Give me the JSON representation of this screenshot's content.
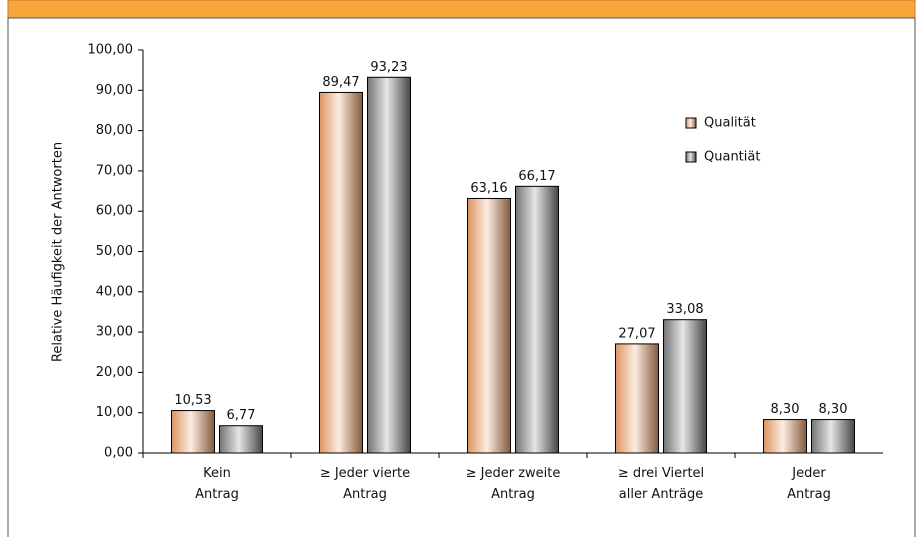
{
  "chart_data": {
    "type": "bar",
    "y_label": "Relative Häufigkeit der Antworten",
    "categories": [
      "Kein\nAntrag",
      "≥ Jeder vierte\nAntrag",
      "≥ Jeder zweite\nAntrag",
      "≥ drei Viertel\naller Anträge",
      "Jeder\nAntrag"
    ],
    "series": [
      {
        "name": "Qualität",
        "color": "#f4a46c",
        "values": [
          10.53,
          89.47,
          63.16,
          27.07,
          8.3
        ],
        "value_labels": [
          "10,53",
          "89,47",
          "63,16",
          "27,07",
          "8,30"
        ]
      },
      {
        "name": "Quantiät",
        "color": "#808080",
        "values": [
          6.77,
          93.23,
          66.17,
          33.08,
          8.3
        ],
        "value_labels": [
          "6,77",
          "93,23",
          "66,17",
          "33,08",
          "8,30"
        ]
      }
    ],
    "ylim": [
      0,
      100
    ],
    "yticks": [
      {
        "value": 0,
        "label": "0,00"
      },
      {
        "value": 10,
        "label": "10,00"
      },
      {
        "value": 20,
        "label": "20,00"
      },
      {
        "value": 30,
        "label": "30,00"
      },
      {
        "value": 40,
        "label": "40,00"
      },
      {
        "value": 50,
        "label": "50,00"
      },
      {
        "value": 60,
        "label": "60,00"
      },
      {
        "value": 70,
        "label": "70,00"
      },
      {
        "value": 80,
        "label": "80,00"
      },
      {
        "value": 90,
        "label": "90,00"
      },
      {
        "value": 100,
        "label": "100,00"
      }
    ],
    "grid": false,
    "legend": "upper right"
  }
}
